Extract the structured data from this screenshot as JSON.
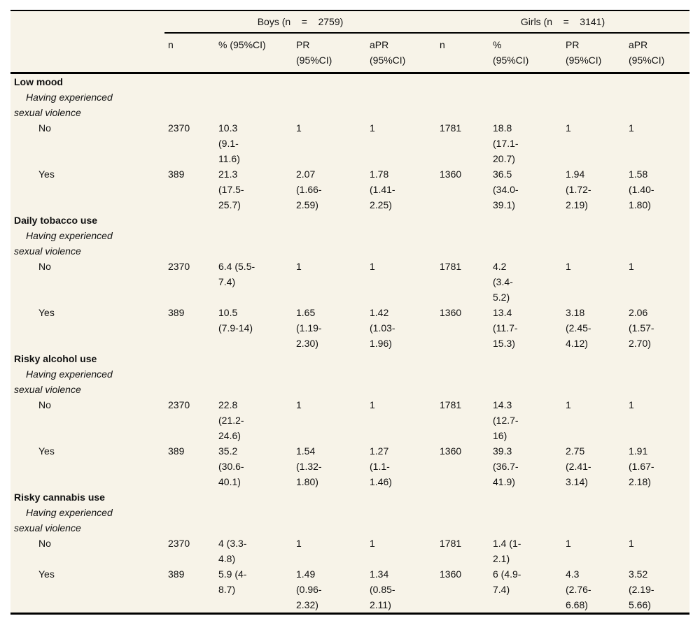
{
  "table": {
    "group_headers": {
      "boys": "Boys (n    =    2759)",
      "girls": "Girls (n    =    3141)"
    },
    "column_headers": [
      "n",
      "% (95%CI)",
      "PR\n(95%CI)",
      "aPR\n(95%CI)",
      "n",
      "%\n(95%CI)",
      "PR\n(95%CI)",
      "aPR\n(95%CI)"
    ],
    "sections": [
      {
        "title": "Low mood",
        "subtitle": "Having experienced\nsexual violence",
        "rows": [
          {
            "label": "No",
            "cells": [
              "2370",
              "10.3\n(9.1-\n11.6)",
              "1",
              "1",
              "1781",
              "18.8\n(17.1-\n20.7)",
              "1",
              "1"
            ]
          },
          {
            "label": "Yes",
            "cells": [
              "389",
              "21.3\n(17.5-\n25.7)",
              "2.07\n(1.66-\n2.59)",
              "1.78\n(1.41-\n2.25)",
              "1360",
              "36.5\n(34.0-\n39.1)",
              "1.94\n(1.72-\n2.19)",
              "1.58\n(1.40-\n1.80)"
            ]
          }
        ]
      },
      {
        "title": "Daily tobacco use",
        "subtitle": "Having experienced\nsexual violence",
        "rows": [
          {
            "label": "No",
            "cells": [
              "2370",
              "6.4 (5.5-\n7.4)",
              "1",
              "1",
              "1781",
              "4.2\n(3.4-\n5.2)",
              "1",
              "1"
            ]
          },
          {
            "label": "Yes",
            "cells": [
              "389",
              "10.5\n(7.9-14)",
              "1.65\n(1.19-\n2.30)",
              "1.42\n(1.03-\n1.96)",
              "1360",
              "13.4\n(11.7-\n15.3)",
              "3.18\n(2.45-\n4.12)",
              "2.06\n(1.57-\n2.70)"
            ]
          }
        ]
      },
      {
        "title": "Risky alcohol use",
        "subtitle": "Having experienced\nsexual violence",
        "rows": [
          {
            "label": "No",
            "cells": [
              "2370",
              "22.8\n(21.2-\n24.6)",
              "1",
              "1",
              "1781",
              "14.3\n(12.7-\n16)",
              "1",
              "1"
            ]
          },
          {
            "label": "Yes",
            "cells": [
              "389",
              "35.2\n(30.6-\n40.1)",
              "1.54\n(1.32-\n1.80)",
              "1.27\n(1.1-\n1.46)",
              "1360",
              "39.3\n(36.7-\n41.9)",
              "2.75\n(2.41-\n3.14)",
              "1.91\n(1.67-\n2.18)"
            ]
          }
        ]
      },
      {
        "title": "Risky cannabis use",
        "subtitle": "Having experienced\nsexual violence",
        "rows": [
          {
            "label": "No",
            "cells": [
              "2370",
              "4 (3.3-\n4.8)",
              "1",
              "1",
              "1781",
              "1.4 (1-\n2.1)",
              "1",
              "1"
            ]
          },
          {
            "label": "Yes",
            "cells": [
              "389",
              "5.9 (4-\n8.7)",
              "1.49\n(0.96-\n2.32)",
              "1.34\n(0.85-\n2.11)",
              "1360",
              "6 (4.9-\n7.4)",
              "4.3\n(2.76-\n6.68)",
              "3.52\n(2.19-\n5.66)"
            ]
          }
        ]
      }
    ]
  },
  "colors": {
    "table_background": "#f7f3e8",
    "rule": "#000000",
    "text": "#111111"
  }
}
